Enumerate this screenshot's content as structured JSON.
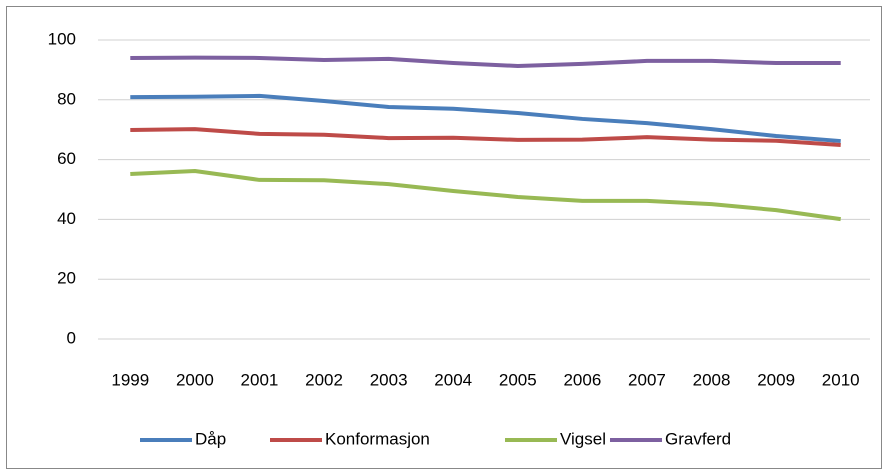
{
  "chart_data": {
    "type": "line",
    "categories": [
      "1999",
      "2000",
      "2001",
      "2002",
      "2003",
      "2004",
      "2005",
      "2006",
      "2007",
      "2008",
      "2009",
      "2010"
    ],
    "series": [
      {
        "name": "Dåp",
        "color": "#4a7ebb",
        "values": [
          80.9,
          81.0,
          81.3,
          79.6,
          77.6,
          77.0,
          75.6,
          73.6,
          72.2,
          70.2,
          67.9,
          66.2
        ]
      },
      {
        "name": "Konformasjon",
        "color": "#be4b48",
        "values": [
          69.9,
          70.2,
          68.6,
          68.3,
          67.2,
          67.3,
          66.6,
          66.7,
          67.5,
          66.7,
          66.3,
          64.9
        ]
      },
      {
        "name": "Vigsel",
        "color": "#98b954",
        "values": [
          55.2,
          56.2,
          53.2,
          53.1,
          51.8,
          49.5,
          47.5,
          46.2,
          46.2,
          45.1,
          43.1,
          40.1
        ]
      },
      {
        "name": "Gravferd",
        "color": "#7d60a0",
        "values": [
          94.0,
          94.1,
          94.0,
          93.3,
          93.7,
          92.3,
          91.3,
          92.0,
          93.0,
          93.0,
          92.3,
          92.3
        ]
      }
    ],
    "ylim": [
      0,
      100
    ],
    "yticks": [
      0,
      20,
      40,
      60,
      80,
      100
    ],
    "grid": true,
    "legend": "bottom"
  }
}
